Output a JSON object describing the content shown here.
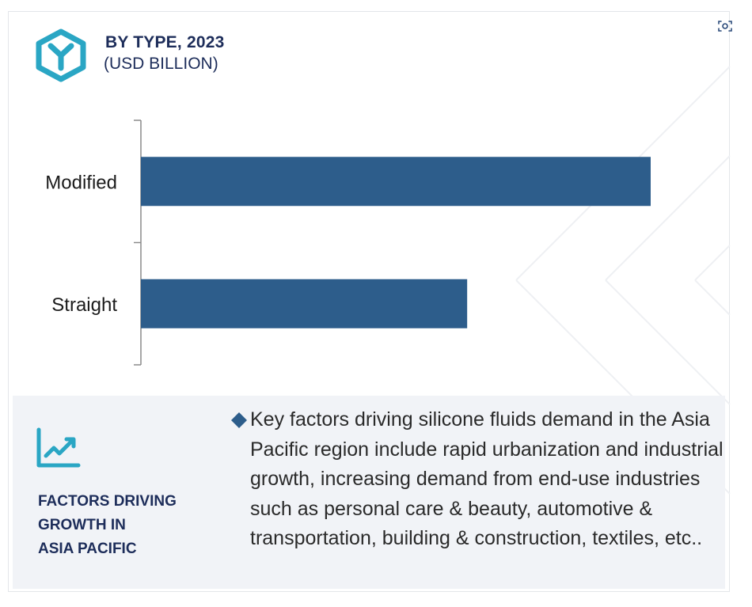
{
  "header": {
    "title_line1": "BY TYPE, 2023",
    "title_line2": "(USD BILLION)",
    "logo_icon": "hexagon-y-icon",
    "expand_icon": "focus-expand-icon",
    "accent_color": "#2aa6c4",
    "title_color": "#1d2d5a"
  },
  "chart_data": {
    "type": "bar",
    "orientation": "horizontal",
    "categories": [
      "Modified",
      "Straight"
    ],
    "values": [
      100,
      64
    ],
    "bar_color": "#2d5d8b",
    "title": "BY TYPE, 2023",
    "subtitle": "(USD BILLION)",
    "xlabel": "",
    "ylabel": "",
    "grid": false
  },
  "info": {
    "heading_lines": [
      "FACTORS DRIVING",
      "GROWTH IN",
      "ASIA PACIFIC"
    ],
    "heading_icon": "growth-chart-icon",
    "bullet_icon": "diamond-bullet-icon",
    "description": "Key factors driving silicone fluids demand in the Asia Pacific region include rapid urbanization and industrial growth, increasing demand from end-use industries such as personal care & beauty, automotive & transportation, building & construction, textiles, etc.."
  }
}
